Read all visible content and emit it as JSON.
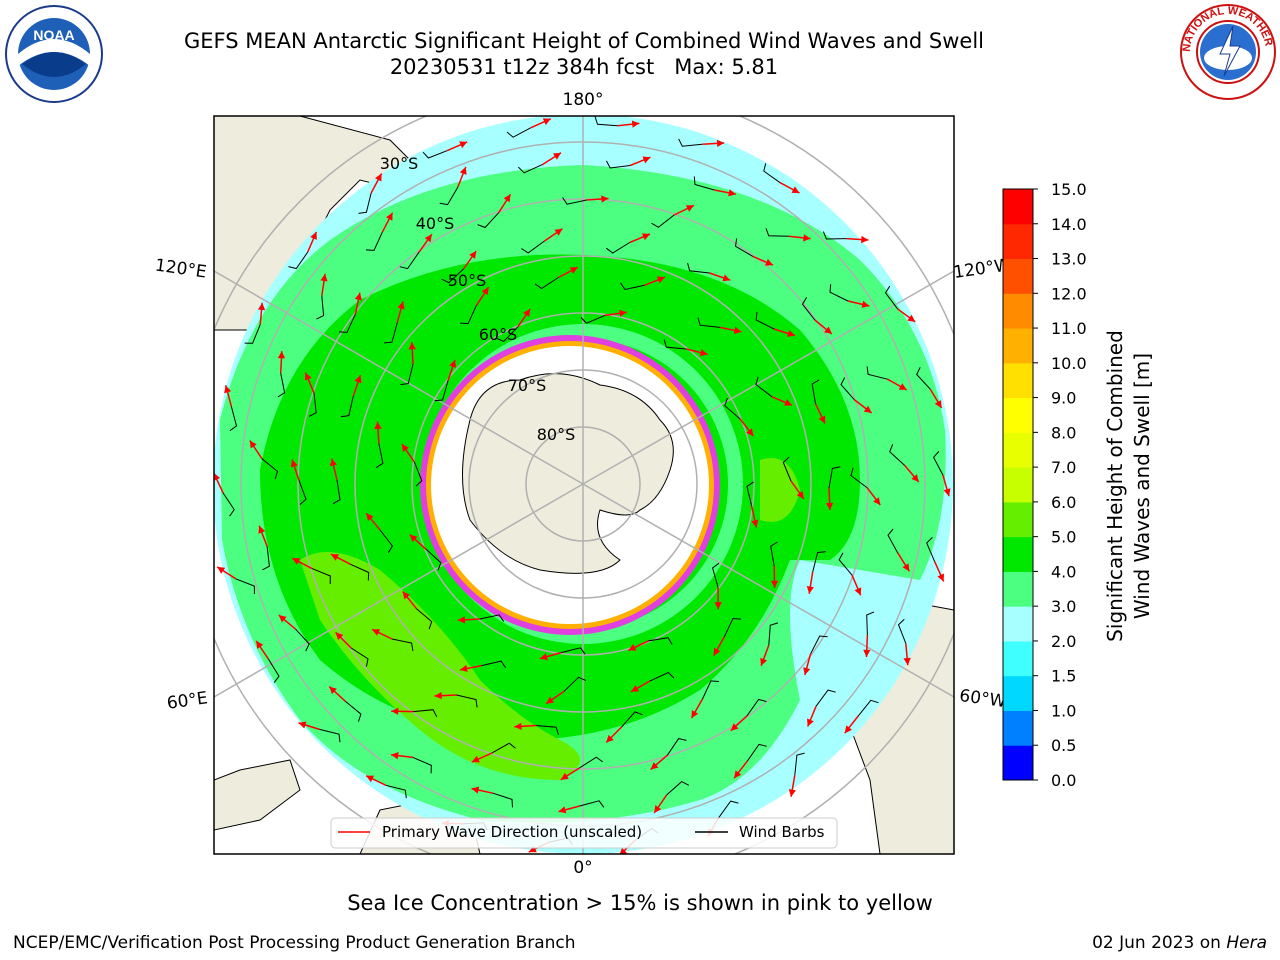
{
  "header": {
    "title_line1": "GEFS MEAN Antarctic Significant Height of Combined Wind Waves and Swell",
    "title_line2": "20230531 t12z 384h fcst   Max: 5.81"
  },
  "map": {
    "lon_labels": {
      "top": "180°",
      "upper_left": "120°E",
      "upper_right": "120°W",
      "lower_left": "60°E",
      "lower_right": "60°W",
      "bottom": "0°"
    },
    "lat_labels": [
      "30°S",
      "40°S",
      "50°S",
      "60°S",
      "70°S",
      "80°S"
    ],
    "legend": {
      "wave_direction": "Primary Wave Direction (unscaled)",
      "wind_barbs": "Wind Barbs"
    },
    "colors": {
      "land": "#eeecdc",
      "ice_edge": "#e040e0",
      "ice_fringe": "#ffb000",
      "arrow": "#ff0000",
      "barb": "#000000",
      "grid": "#b0b0b0"
    }
  },
  "colorbar": {
    "label_line1": "Significant Height of Combined",
    "label_line2": "Wind Waves and Swell [m]",
    "ticks": [
      "0.0",
      "0.5",
      "1.0",
      "1.5",
      "2.0",
      "3.0",
      "4.0",
      "5.0",
      "6.0",
      "7.0",
      "8.0",
      "9.0",
      "10.0",
      "11.0",
      "12.0",
      "13.0",
      "14.0",
      "15.0"
    ],
    "colors": [
      "#0000ff",
      "#0080ff",
      "#00d8ff",
      "#40ffff",
      "#a8ffff",
      "#4cff80",
      "#00e800",
      "#66ee00",
      "#c8ff00",
      "#e8ff00",
      "#ffff00",
      "#ffe000",
      "#ffb000",
      "#ff8c00",
      "#ff5000",
      "#ff2800",
      "#ff0000"
    ]
  },
  "caption": "Sea Ice Concentration > 15% is shown in pink to yellow",
  "footer": {
    "left": "NCEP/EMC/Verification Post Processing Product Generation Branch",
    "right_date": "02 Jun 2023 on ",
    "right_host": "Hera"
  },
  "logos": {
    "left": "NOAA",
    "right": "NATIONAL WEATHER SERVICE"
  }
}
